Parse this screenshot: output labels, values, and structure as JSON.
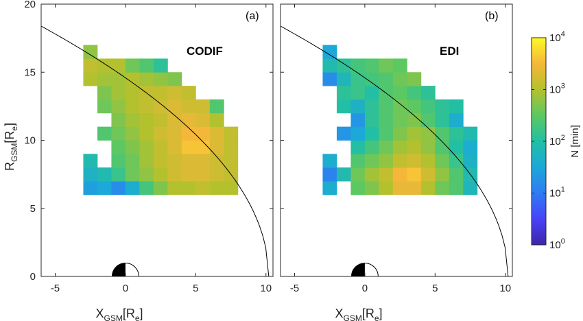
{
  "figure": {
    "colors": {
      "axis": "#262626",
      "background": "#ffffff",
      "colormap": [
        "#3e26a8",
        "#4743f8",
        "#2f7bf3",
        "#1ca8d8",
        "#23bfa4",
        "#5cc862",
        "#b4c12e",
        "#f5b73a",
        "#fcf928"
      ]
    },
    "colorbar": {
      "label": "N [min]",
      "tick_labels": [
        {
          "base": "10",
          "exp": "0"
        },
        {
          "base": "10",
          "exp": "1"
        },
        {
          "base": "10",
          "exp": "2"
        },
        {
          "base": "10",
          "exp": "3"
        },
        {
          "base": "10",
          "exp": "4"
        }
      ],
      "scale": "log",
      "range": [
        1,
        10000
      ]
    }
  },
  "chart_data": [
    {
      "type": "heatmap",
      "panel_label": "(a)",
      "title": "CODIF",
      "xlabel": {
        "main": "X",
        "sub": "GSM",
        "unit_open": "[R",
        "unit_sub": "e",
        "unit_close": "]"
      },
      "ylabel": {
        "main": "R",
        "sub": "GSM",
        "unit_open": "[R",
        "unit_sub": "e",
        "unit_close": "]"
      },
      "xlim": [
        -6,
        10.5
      ],
      "ylim": [
        0,
        20
      ],
      "xticks": [
        -5,
        0,
        5,
        10
      ],
      "yticks": [
        0,
        5,
        10,
        15,
        20
      ],
      "grid": false,
      "bin_size": 1,
      "x_bin_centers": [
        -2.5,
        -1.5,
        -0.5,
        0.5,
        1.5,
        2.5,
        3.5,
        4.5,
        5.5,
        6.5,
        7.5
      ],
      "y_bin_centers": [
        6.5,
        7.5,
        8.5,
        9.5,
        10.5,
        11.5,
        12.5,
        13.5,
        14.5,
        15.5,
        16.5
      ],
      "values_log10": [
        [
          1.4,
          1.5,
          1.2,
          1.6,
          2.3,
          2.7,
          3.0,
          3.0,
          3.1,
          3.0,
          3.0
        ],
        [
          1.7,
          1.9,
          2.2,
          2.6,
          2.8,
          3.0,
          3.2,
          3.3,
          3.3,
          3.2,
          3.1
        ],
        [
          1.9,
          null,
          2.4,
          2.6,
          2.9,
          3.1,
          3.2,
          3.3,
          3.3,
          3.2,
          3.1
        ],
        [
          null,
          null,
          2.5,
          2.7,
          2.9,
          3.1,
          3.3,
          3.6,
          3.6,
          3.3,
          3.1
        ],
        [
          null,
          2.4,
          2.6,
          2.8,
          3.0,
          3.2,
          3.3,
          3.5,
          3.5,
          3.3,
          3.1
        ],
        [
          null,
          null,
          2.7,
          2.9,
          3.0,
          3.1,
          3.3,
          3.4,
          3.3,
          3.0,
          null
        ],
        [
          null,
          2.6,
          2.8,
          3.0,
          3.1,
          3.2,
          3.3,
          3.2,
          3.2,
          2.4,
          null
        ],
        [
          null,
          2.7,
          2.9,
          3.0,
          3.1,
          3.1,
          3.2,
          3.1,
          null,
          null,
          null
        ],
        [
          3.0,
          2.9,
          2.9,
          3.0,
          2.9,
          2.8,
          2.7,
          null,
          null,
          null,
          null
        ],
        [
          3.1,
          3.0,
          3.0,
          2.6,
          2.4,
          2.1,
          null,
          null,
          null,
          null,
          null
        ],
        [
          2.8,
          null,
          null,
          null,
          null,
          null,
          null,
          null,
          null,
          null,
          null
        ]
      ],
      "boundary": "magnetopause curve",
      "earth_symbol": true
    },
    {
      "type": "heatmap",
      "panel_label": "(b)",
      "title": "EDI",
      "xlabel": {
        "main": "X",
        "sub": "GSM",
        "unit_open": "[R",
        "unit_sub": "e",
        "unit_close": "]"
      },
      "xlim": [
        -6,
        10.5
      ],
      "ylim": [
        0,
        20
      ],
      "xticks": [
        -5,
        0,
        5,
        10
      ],
      "yticks": [
        0,
        5,
        10,
        15,
        20
      ],
      "grid": false,
      "bin_size": 1,
      "x_bin_centers": [
        -2.5,
        -1.5,
        -0.5,
        0.5,
        1.5,
        2.5,
        3.5,
        4.5,
        5.5,
        6.5,
        7.5
      ],
      "y_bin_centers": [
        6.5,
        7.5,
        8.5,
        9.5,
        10.5,
        11.5,
        12.5,
        13.5,
        14.5,
        15.5,
        16.5
      ],
      "values_log10": [
        [
          1.6,
          null,
          2.5,
          2.7,
          3.0,
          3.4,
          3.4,
          3.0,
          2.6,
          2.4,
          1.8
        ],
        [
          1.1,
          1.9,
          2.6,
          2.9,
          3.1,
          3.5,
          3.6,
          3.2,
          2.8,
          2.4,
          1.9
        ],
        [
          1.6,
          null,
          2.4,
          2.6,
          2.8,
          3.1,
          3.2,
          3.0,
          2.6,
          2.2,
          1.7
        ],
        [
          null,
          null,
          2.0,
          2.3,
          2.6,
          2.9,
          3.0,
          2.8,
          2.4,
          2.0,
          1.6
        ],
        [
          null,
          1.3,
          1.5,
          2.0,
          2.4,
          2.7,
          2.9,
          2.8,
          2.4,
          2.1,
          1.9
        ],
        [
          null,
          null,
          1.3,
          2.1,
          2.4,
          2.6,
          2.7,
          2.4,
          2.1,
          1.6,
          null
        ],
        [
          null,
          2.0,
          1.7,
          2.1,
          2.4,
          2.6,
          2.5,
          2.3,
          2.1,
          2.0,
          null
        ],
        [
          null,
          2.1,
          2.2,
          2.0,
          2.4,
          2.5,
          2.3,
          2.1,
          null,
          null,
          null
        ],
        [
          1.2,
          1.8,
          2.2,
          2.3,
          2.4,
          2.6,
          2.7,
          null,
          null,
          null,
          null
        ],
        [
          1.9,
          2.1,
          2.3,
          2.4,
          2.6,
          2.5,
          null,
          null,
          null,
          null,
          null
        ],
        [
          1.5,
          null,
          null,
          null,
          null,
          null,
          null,
          null,
          null,
          null,
          null
        ]
      ],
      "boundary": "magnetopause curve",
      "earth_symbol": true
    }
  ]
}
